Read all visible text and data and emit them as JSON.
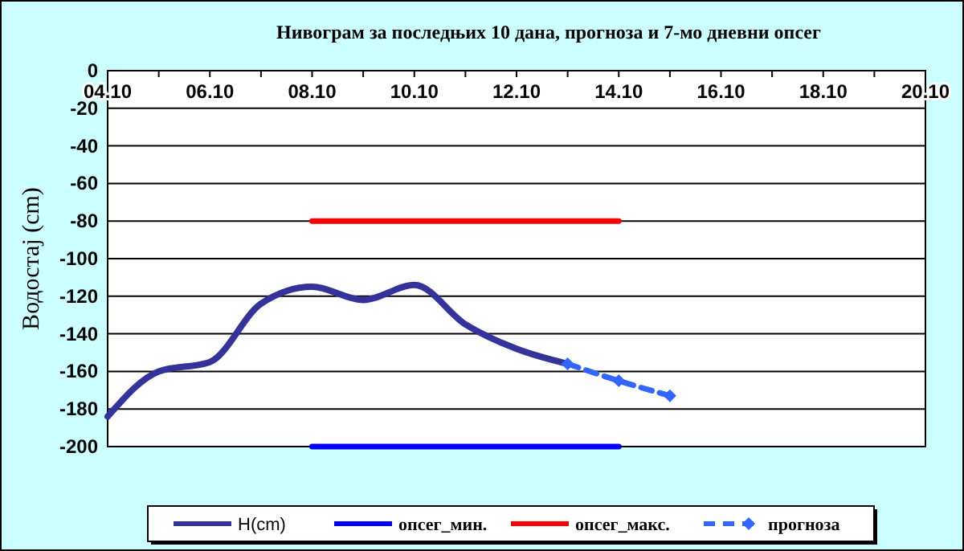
{
  "chart_data": {
    "type": "line",
    "title": "Нивограм за последњих 10 дана, прогноза и 7-мо дневни опсег",
    "ylabel": "Водостај (cm)",
    "xlim": [
      "--10-04",
      "--10-20"
    ],
    "xticks": [
      {
        "value": "--10-04",
        "label": "04.10"
      },
      {
        "value": "--10-06",
        "label": "06.10"
      },
      {
        "value": "--10-08",
        "label": "08.10"
      },
      {
        "value": "--10-10",
        "label": "10.10"
      },
      {
        "value": "--10-12",
        "label": "12.10"
      },
      {
        "value": "--10-14",
        "label": "14.10"
      },
      {
        "value": "--10-16",
        "label": "16.10"
      },
      {
        "value": "--10-18",
        "label": "18.10"
      },
      {
        "value": "--10-20",
        "label": "20.10"
      }
    ],
    "ylim": [
      -200,
      0
    ],
    "yticks": [
      0,
      -20,
      -40,
      -60,
      -80,
      -100,
      -120,
      -140,
      -160,
      -180,
      -200
    ],
    "grid": "y",
    "legend": "bottom",
    "series": [
      {
        "name": "H(cm)",
        "color": "#333399",
        "line_style": "solid",
        "marker": "none",
        "x": [
          "--10-04",
          "--10-05",
          "--10-06",
          "--10-07",
          "--10-08",
          "--10-09",
          "--10-10",
          "--10-11",
          "--10-12",
          "--10-13"
        ],
        "values": [
          -184,
          -160,
          -155,
          -124,
          -115,
          -122,
          -114,
          -135,
          -148,
          -156
        ]
      },
      {
        "name": "опсег_мин.",
        "color": "#0000ff",
        "line_style": "solid",
        "marker": "none",
        "x": [
          "--10-08",
          "--10-14"
        ],
        "values": [
          -200,
          -200
        ]
      },
      {
        "name": "опсег_макс.",
        "color": "#ff0000",
        "line_style": "solid",
        "marker": "none",
        "x": [
          "--10-08",
          "--10-14"
        ],
        "values": [
          -80,
          -80
        ]
      },
      {
        "name": "прогноза",
        "color": "#3366ff",
        "line_style": "dashed",
        "marker": "diamond",
        "x": [
          "--10-13",
          "--10-14",
          "--10-15"
        ],
        "values": [
          -156,
          -165,
          -173
        ]
      }
    ]
  }
}
